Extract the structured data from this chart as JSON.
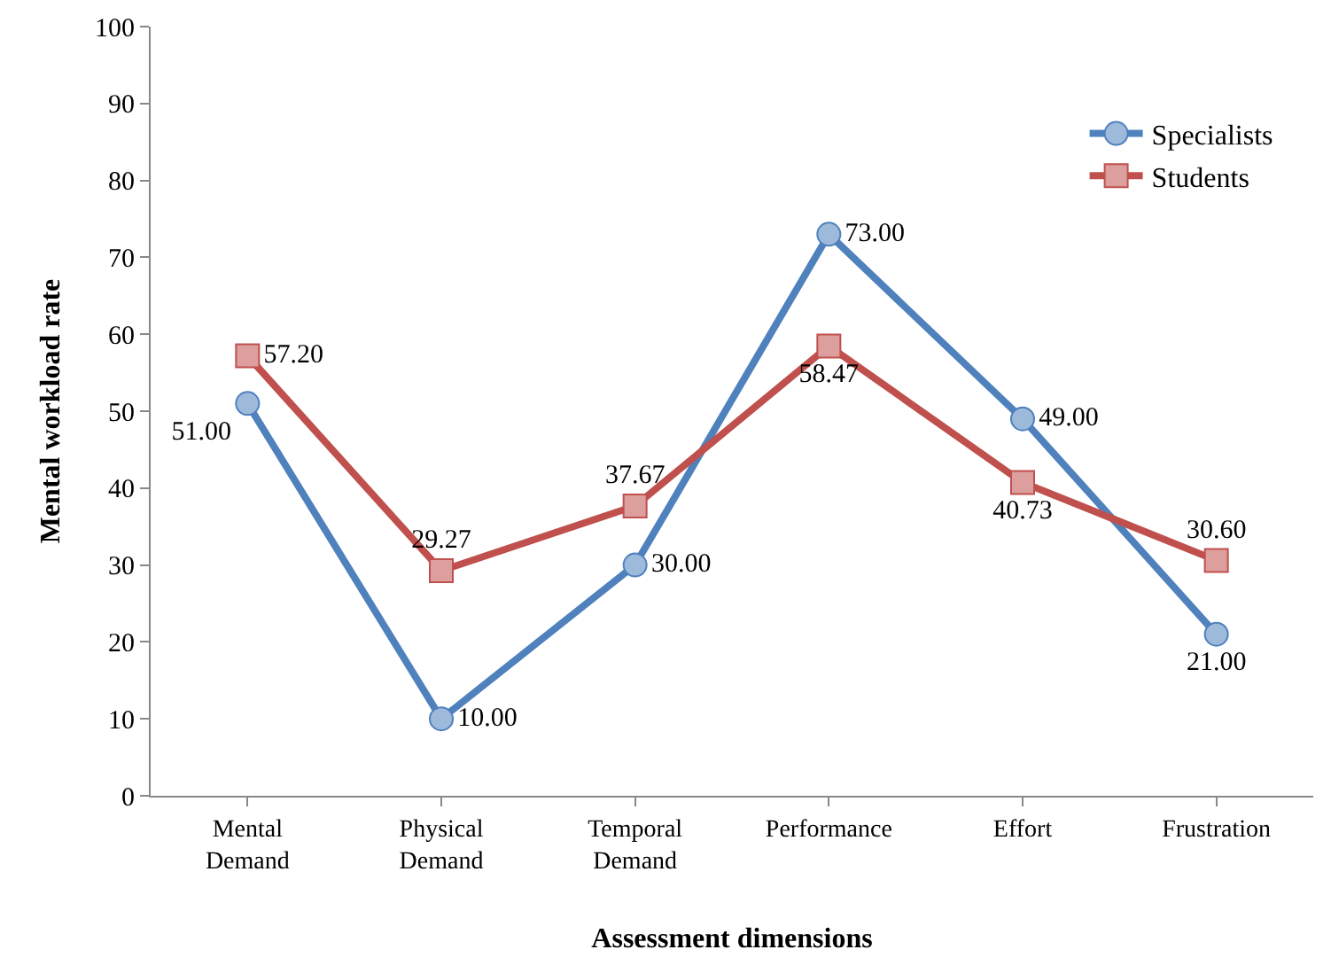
{
  "chart_data": {
    "type": "line",
    "xlabel": "Assessment dimensions",
    "ylabel": "Mental workload rate",
    "categories": [
      "Mental Demand",
      "Physical Demand",
      "Temporal Demand",
      "Performance",
      "Effort",
      "Frustration"
    ],
    "series": [
      {
        "name": "Specialists",
        "color": "#4f81bd",
        "marker": "circle",
        "values": [
          51,
          10,
          30,
          73,
          49,
          21
        ],
        "value_labels": [
          "51.00",
          "10.00",
          "30.00",
          "73.00",
          "49.00",
          "21.00"
        ]
      },
      {
        "name": "Students",
        "color": "#c0504d",
        "marker": "square",
        "values": [
          57.2,
          29.27,
          37.67,
          58.47,
          40.73,
          30.6
        ],
        "value_labels": [
          "57.20",
          "29.27",
          "37.67",
          "58.47",
          "40.73",
          "30.60"
        ]
      }
    ],
    "ylim": [
      0,
      100
    ],
    "yticks": [
      0,
      10,
      20,
      30,
      40,
      50,
      60,
      70,
      80,
      90,
      100
    ],
    "grid": false,
    "legend": "top right",
    "line_style": "solid"
  }
}
